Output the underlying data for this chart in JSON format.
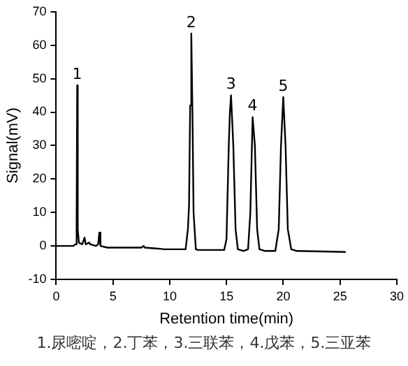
{
  "chart_data": {
    "type": "line",
    "xlabel": "Retention time(min)",
    "ylabel": "Signal(mV)",
    "x": [
      0,
      1.5,
      1.7,
      1.8,
      1.85,
      1.9,
      2.0,
      2.3,
      2.5,
      2.6,
      2.9,
      3.0,
      3.5,
      3.7,
      3.8,
      3.9,
      4.5,
      5,
      6,
      7.5,
      7.7,
      7.8,
      9,
      9.5,
      11.4,
      11.6,
      11.7,
      11.8,
      11.9,
      12.0,
      12.1,
      12.3,
      12.5,
      14.8,
      15.0,
      15.2,
      15.3,
      15.4,
      15.6,
      15.8,
      16.0,
      16.5,
      16.9,
      17.1,
      17.3,
      17.5,
      17.7,
      17.9,
      18.4,
      19.3,
      19.6,
      19.8,
      20.0,
      20.2,
      20.4,
      20.7,
      21.2,
      25.5
    ],
    "series": [
      {
        "color": "#000000",
        "values": [
          0,
          0,
          0.5,
          7,
          48,
          5,
          1,
          0.5,
          2.5,
          0.5,
          1,
          0.5,
          0,
          0.5,
          4,
          0,
          -0.5,
          -0.5,
          -0.5,
          -0.5,
          0,
          -0.5,
          -0.8,
          -1,
          -1,
          5,
          12,
          42,
          63.5,
          40,
          10,
          -1,
          -1.2,
          -1.2,
          2,
          30,
          40,
          45,
          30,
          5,
          -1,
          -1.5,
          -1,
          10,
          38.5,
          30,
          5,
          -1,
          -1.5,
          -1.5,
          5,
          30,
          44.5,
          30,
          5,
          -1,
          -1.5,
          -1.8
        ]
      }
    ],
    "xlim": [
      0,
      30
    ],
    "xticks": [
      0,
      5,
      10,
      15,
      20,
      25,
      30
    ],
    "ylim": [
      -10,
      70
    ],
    "yticks": [
      -10,
      0,
      10,
      20,
      30,
      40,
      50,
      60,
      70
    ],
    "grid": false,
    "legend": false,
    "marker": "none",
    "line_style": "solid",
    "annotations": [
      {
        "text": "1",
        "x": 1.85,
        "y": 48
      },
      {
        "text": "2",
        "x": 11.9,
        "y": 63.5
      },
      {
        "text": "3",
        "x": 15.4,
        "y": 45
      },
      {
        "text": "4",
        "x": 17.3,
        "y": 38.5
      },
      {
        "text": "5",
        "x": 20.0,
        "y": 44.5
      },
      "1.尿嘧啶，2.丁苯，3.三联苯，4.戊苯，5.三亚苯"
    ]
  }
}
